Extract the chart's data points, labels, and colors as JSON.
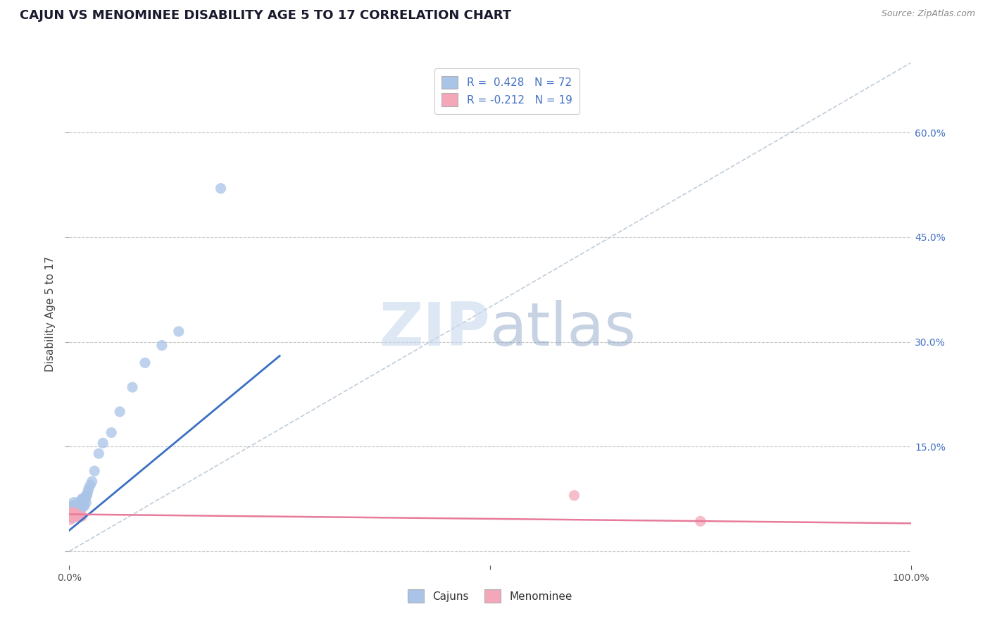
{
  "title": "CAJUN VS MENOMINEE DISABILITY AGE 5 TO 17 CORRELATION CHART",
  "source": "Source: ZipAtlas.com",
  "ylabel": "Disability Age 5 to 17",
  "xlim": [
    0.0,
    1.0
  ],
  "ylim": [
    -0.02,
    0.7
  ],
  "y_ticks": [
    0.0,
    0.15,
    0.3,
    0.45,
    0.6
  ],
  "y_tick_labels": [
    "",
    "15.0%",
    "30.0%",
    "45.0%",
    "60.0%"
  ],
  "grid_color": "#c8c8c8",
  "background_color": "#ffffff",
  "watermark_zip": "ZIP",
  "watermark_atlas": "atlas",
  "cajun_color": "#aac4e8",
  "menominee_color": "#f4a7b9",
  "cajun_line_color": "#3a6fc4",
  "menominee_line_color": "#e87a9a",
  "diagonal_color": "#b8c8d8",
  "cajun_points_x": [
    0.001,
    0.001,
    0.002,
    0.002,
    0.002,
    0.003,
    0.003,
    0.003,
    0.003,
    0.003,
    0.004,
    0.004,
    0.004,
    0.004,
    0.005,
    0.005,
    0.005,
    0.005,
    0.005,
    0.005,
    0.006,
    0.006,
    0.006,
    0.007,
    0.007,
    0.007,
    0.007,
    0.008,
    0.008,
    0.008,
    0.009,
    0.009,
    0.009,
    0.01,
    0.01,
    0.01,
    0.01,
    0.011,
    0.011,
    0.012,
    0.012,
    0.012,
    0.013,
    0.013,
    0.014,
    0.014,
    0.015,
    0.015,
    0.016,
    0.016,
    0.017,
    0.017,
    0.018,
    0.018,
    0.019,
    0.02,
    0.02,
    0.021,
    0.022,
    0.023,
    0.025,
    0.027,
    0.03,
    0.035,
    0.04,
    0.05,
    0.06,
    0.075,
    0.09,
    0.11,
    0.13,
    0.18
  ],
  "cajun_points_y": [
    0.06,
    0.055,
    0.055,
    0.055,
    0.05,
    0.06,
    0.055,
    0.055,
    0.05,
    0.048,
    0.065,
    0.06,
    0.055,
    0.05,
    0.07,
    0.065,
    0.06,
    0.055,
    0.05,
    0.048,
    0.065,
    0.06,
    0.055,
    0.065,
    0.06,
    0.055,
    0.05,
    0.065,
    0.06,
    0.055,
    0.065,
    0.06,
    0.055,
    0.07,
    0.065,
    0.06,
    0.055,
    0.065,
    0.06,
    0.065,
    0.06,
    0.055,
    0.065,
    0.06,
    0.065,
    0.06,
    0.075,
    0.065,
    0.075,
    0.065,
    0.075,
    0.065,
    0.075,
    0.065,
    0.075,
    0.08,
    0.07,
    0.08,
    0.085,
    0.09,
    0.095,
    0.1,
    0.115,
    0.14,
    0.155,
    0.17,
    0.2,
    0.235,
    0.27,
    0.295,
    0.315,
    0.52
  ],
  "menominee_points_x": [
    0.001,
    0.001,
    0.001,
    0.002,
    0.002,
    0.003,
    0.003,
    0.004,
    0.004,
    0.005,
    0.005,
    0.006,
    0.007,
    0.008,
    0.01,
    0.012,
    0.015,
    0.6,
    0.75
  ],
  "menominee_points_y": [
    0.055,
    0.05,
    0.045,
    0.055,
    0.05,
    0.055,
    0.05,
    0.055,
    0.05,
    0.055,
    0.05,
    0.05,
    0.055,
    0.05,
    0.05,
    0.05,
    0.05,
    0.08,
    0.043
  ],
  "cajun_line_x": [
    0.0,
    0.25
  ],
  "cajun_line_y": [
    0.03,
    0.28
  ],
  "menominee_line_x": [
    0.0,
    1.0
  ],
  "menominee_line_y": [
    0.053,
    0.04
  ]
}
